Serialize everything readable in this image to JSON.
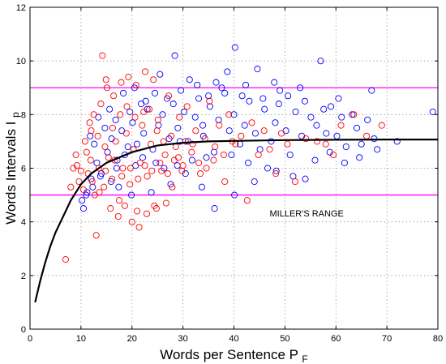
{
  "chart_data": {
    "type": "scatter",
    "title": "",
    "xlabel": "Words per Sentence",
    "xlabel_sub": "F",
    "xlabel_var": "P",
    "ylabel": "Words Intervals",
    "ylabel_var": "I",
    "ylabel_sub": "p",
    "xlim": [
      0,
      80
    ],
    "ylim": [
      0,
      12
    ],
    "xticks": [
      0,
      10,
      20,
      30,
      40,
      50,
      60,
      70,
      80
    ],
    "yticks": [
      0,
      2,
      4,
      6,
      8,
      10,
      12
    ],
    "grid": true,
    "annotation": "MILLER'S RANGE",
    "annotation_position": {
      "x": 47,
      "y": 4.2
    },
    "hlines": [
      {
        "y": 9,
        "color": "#ff00ff"
      },
      {
        "y": 5,
        "color": "#ff00ff"
      }
    ],
    "series": [
      {
        "marker": "circle-open",
        "color": "#0000ff",
        "points": [
          [
            10.5,
            4.5
          ],
          [
            11.2,
            5.1
          ],
          [
            12.0,
            5.6
          ],
          [
            13.1,
            6.2
          ],
          [
            14.0,
            5.8
          ],
          [
            15.2,
            6.6
          ],
          [
            16.0,
            7.1
          ],
          [
            17.1,
            6.3
          ],
          [
            18.0,
            7.4
          ],
          [
            19.2,
            6.8
          ],
          [
            20.1,
            7.7
          ],
          [
            21.0,
            6.9
          ],
          [
            22.3,
            7.3
          ],
          [
            23.0,
            8.2
          ],
          [
            24.1,
            6.7
          ],
          [
            25.2,
            7.6
          ],
          [
            26.0,
            8.0
          ],
          [
            27.3,
            7.1
          ],
          [
            28.1,
            8.4
          ],
          [
            29.0,
            7.5
          ],
          [
            30.2,
            8.1
          ],
          [
            31.0,
            7.0
          ],
          [
            32.4,
            7.9
          ],
          [
            33.1,
            8.6
          ],
          [
            34.0,
            7.2
          ],
          [
            35.3,
            8.3
          ],
          [
            36.1,
            6.6
          ],
          [
            37.0,
            7.8
          ],
          [
            38.2,
            8.8
          ],
          [
            39.1,
            7.4
          ],
          [
            40.0,
            8.0
          ],
          [
            41.2,
            6.9
          ],
          [
            42.1,
            7.6
          ],
          [
            43.0,
            8.5
          ],
          [
            44.2,
            7.3
          ],
          [
            45.1,
            6.7
          ],
          [
            46.0,
            8.2
          ],
          [
            47.3,
            7.0
          ],
          [
            48.1,
            7.7
          ],
          [
            49.0,
            8.9
          ],
          [
            50.2,
            7.4
          ],
          [
            51.0,
            6.5
          ],
          [
            52.1,
            8.1
          ],
          [
            53.3,
            7.2
          ],
          [
            54.0,
            5.6
          ],
          [
            55.1,
            7.9
          ],
          [
            56.2,
            7.6
          ],
          [
            57.0,
            10.0
          ],
          [
            58.1,
            7.3
          ],
          [
            59.0,
            8.3
          ],
          [
            60.2,
            7.2
          ],
          [
            61.1,
            7.9
          ],
          [
            62.0,
            6.8
          ],
          [
            63.2,
            8.0
          ],
          [
            64.1,
            7.5
          ],
          [
            65.0,
            6.9
          ],
          [
            66.2,
            7.8
          ],
          [
            67.0,
            8.9
          ],
          [
            68.1,
            6.7
          ],
          [
            72.0,
            7.0
          ],
          [
            79.0,
            8.1
          ],
          [
            40.2,
            10.5
          ],
          [
            28.4,
            10.2
          ],
          [
            36.5,
            9.2
          ],
          [
            44.6,
            9.7
          ],
          [
            47.9,
            9.2
          ],
          [
            50.6,
            8.7
          ],
          [
            31.3,
            9.3
          ],
          [
            38.7,
            9.6
          ],
          [
            25.5,
            9.5
          ],
          [
            20.5,
            9.0
          ],
          [
            18.3,
            8.8
          ],
          [
            22.7,
            8.5
          ],
          [
            15.6,
            8.2
          ],
          [
            13.4,
            7.9
          ],
          [
            11.8,
            7.2
          ],
          [
            12.6,
            6.9
          ],
          [
            14.7,
            7.5
          ],
          [
            16.8,
            7.8
          ],
          [
            19.6,
            8.1
          ],
          [
            21.8,
            8.4
          ],
          [
            24.5,
            8.8
          ],
          [
            26.9,
            8.6
          ],
          [
            29.6,
            8.9
          ],
          [
            32.8,
            9.1
          ],
          [
            35.0,
            8.7
          ],
          [
            37.6,
            9.0
          ],
          [
            42.3,
            9.1
          ],
          [
            45.7,
            8.6
          ],
          [
            48.8,
            8.4
          ],
          [
            53.9,
            8.5
          ],
          [
            57.6,
            8.2
          ],
          [
            36.2,
            4.5
          ],
          [
            40.1,
            5.0
          ],
          [
            33.7,
            5.3
          ],
          [
            44.0,
            5.5
          ],
          [
            48.3,
            5.9
          ],
          [
            51.6,
            5.7
          ],
          [
            27.6,
            5.4
          ],
          [
            30.5,
            5.8
          ],
          [
            23.8,
            5.1
          ],
          [
            19.9,
            5.0
          ],
          [
            17.4,
            5.3
          ],
          [
            15.9,
            5.5
          ],
          [
            13.8,
            5.7
          ],
          [
            12.3,
            5.3
          ],
          [
            11.0,
            5.0
          ],
          [
            10.2,
            4.8
          ],
          [
            42.8,
            6.2
          ],
          [
            46.6,
            6.0
          ],
          [
            39.5,
            6.5
          ],
          [
            34.6,
            6.4
          ],
          [
            31.8,
            6.3
          ],
          [
            28.9,
            6.1
          ],
          [
            26.3,
            6.0
          ],
          [
            24.7,
            6.2
          ],
          [
            22.1,
            6.4
          ],
          [
            20.7,
            6.1
          ],
          [
            18.6,
            6.5
          ],
          [
            17.0,
            6.0
          ],
          [
            55.9,
            6.3
          ],
          [
            58.8,
            6.6
          ],
          [
            61.7,
            6.2
          ],
          [
            64.6,
            6.4
          ],
          [
            67.5,
            7.1
          ],
          [
            60.5,
            8.6
          ],
          [
            53.0,
            9.0
          ],
          [
            41.6,
            8.7
          ],
          [
            33.9,
            7.6
          ],
          [
            29.4,
            7.0
          ]
        ]
      },
      {
        "marker": "circle-open",
        "color": "#ff0000",
        "points": [
          [
            7.0,
            2.6
          ],
          [
            8.0,
            5.3
          ],
          [
            9.2,
            6.1
          ],
          [
            10.0,
            5.9
          ],
          [
            11.1,
            6.6
          ],
          [
            12.0,
            7.4
          ],
          [
            13.0,
            3.5
          ],
          [
            13.6,
            5.1
          ],
          [
            14.2,
            10.2
          ],
          [
            14.9,
            9.3
          ],
          [
            15.4,
            6.4
          ],
          [
            16.1,
            5.6
          ],
          [
            16.8,
            7.0
          ],
          [
            17.5,
            4.8
          ],
          [
            18.2,
            6.0
          ],
          [
            18.9,
            7.3
          ],
          [
            19.6,
            5.4
          ],
          [
            20.3,
            6.7
          ],
          [
            21.0,
            4.4
          ],
          [
            21.6,
            6.2
          ],
          [
            22.3,
            8.1
          ],
          [
            23.0,
            5.7
          ],
          [
            23.7,
            6.9
          ],
          [
            24.4,
            4.6
          ],
          [
            25.1,
            7.8
          ],
          [
            25.8,
            5.9
          ],
          [
            26.5,
            6.5
          ],
          [
            27.2,
            8.7
          ],
          [
            27.9,
            5.3
          ],
          [
            28.6,
            6.8
          ],
          [
            29.3,
            7.9
          ],
          [
            30.0,
            6.1
          ],
          [
            30.8,
            8.3
          ],
          [
            31.7,
            6.6
          ],
          [
            32.5,
            7.4
          ],
          [
            33.4,
            5.8
          ],
          [
            34.3,
            7.1
          ],
          [
            35.2,
            8.5
          ],
          [
            36.0,
            6.3
          ],
          [
            37.1,
            7.6
          ],
          [
            38.2,
            5.5
          ],
          [
            39.0,
            8.0
          ],
          [
            40.3,
            6.9
          ],
          [
            41.4,
            7.2
          ],
          [
            42.6,
            4.8
          ],
          [
            43.5,
            7.7
          ],
          [
            44.8,
            6.5
          ],
          [
            45.9,
            7.4
          ],
          [
            47.0,
            6.7
          ],
          [
            48.2,
            5.8
          ],
          [
            49.3,
            7.3
          ],
          [
            50.5,
            6.9
          ],
          [
            52.0,
            5.5
          ],
          [
            54.1,
            7.1
          ],
          [
            56.3,
            7.0
          ],
          [
            58.0,
            6.9
          ],
          [
            59.5,
            6.5
          ],
          [
            61.0,
            7.6
          ],
          [
            63.5,
            8.0
          ],
          [
            66.0,
            7.2
          ],
          [
            69.0,
            7.6
          ],
          [
            12.5,
            8.0
          ],
          [
            13.9,
            8.4
          ],
          [
            15.1,
            9.0
          ],
          [
            16.4,
            8.7
          ],
          [
            17.9,
            9.2
          ],
          [
            19.3,
            9.4
          ],
          [
            20.8,
            9.1
          ],
          [
            22.6,
            9.6
          ],
          [
            24.2,
            9.3
          ],
          [
            9.6,
            5.5
          ],
          [
            10.5,
            5.2
          ],
          [
            11.4,
            5.8
          ],
          [
            12.7,
            5.0
          ],
          [
            14.5,
            5.3
          ],
          [
            15.8,
            4.5
          ],
          [
            17.3,
            4.2
          ],
          [
            18.6,
            4.6
          ],
          [
            20.0,
            4.0
          ],
          [
            21.4,
            3.8
          ],
          [
            22.9,
            4.3
          ],
          [
            24.8,
            4.5
          ],
          [
            26.7,
            4.7
          ],
          [
            8.5,
            6.0
          ],
          [
            9.0,
            6.5
          ],
          [
            10.8,
            7.0
          ],
          [
            11.7,
            7.7
          ],
          [
            13.3,
            7.2
          ],
          [
            14.7,
            6.8
          ],
          [
            16.2,
            7.5
          ],
          [
            17.7,
            8.0
          ],
          [
            19.0,
            8.3
          ],
          [
            20.6,
            7.9
          ],
          [
            22.0,
            7.6
          ],
          [
            23.4,
            8.2
          ],
          [
            24.9,
            7.4
          ],
          [
            26.2,
            7.0
          ],
          [
            27.7,
            7.2
          ],
          [
            29.1,
            6.4
          ],
          [
            30.5,
            7.0
          ],
          [
            31.9,
            6.9
          ],
          [
            33.1,
            6.2
          ],
          [
            34.6,
            6.0
          ],
          [
            36.3,
            6.8
          ],
          [
            38.0,
            6.5
          ],
          [
            39.7,
            7.0
          ],
          [
            12.2,
            5.5
          ],
          [
            13.5,
            6.0
          ],
          [
            14.8,
            5.9
          ],
          [
            16.6,
            6.3
          ],
          [
            18.0,
            5.7
          ],
          [
            19.7,
            6.0
          ],
          [
            21.2,
            5.6
          ],
          [
            22.5,
            6.1
          ],
          [
            23.9,
            5.9
          ],
          [
            25.5,
            6.2
          ],
          [
            27.0,
            5.8
          ],
          [
            28.3,
            6.3
          ],
          [
            29.8,
            5.9
          ],
          [
            11.9,
            6.3
          ]
        ]
      },
      {
        "type": "line",
        "name": "fit",
        "color": "#000000",
        "x": [
          1,
          2,
          3,
          4,
          5,
          6,
          8,
          10,
          12,
          15,
          20,
          25,
          30,
          35,
          40,
          50,
          60,
          70,
          80
        ],
        "y": [
          1.0,
          1.8,
          2.5,
          3.1,
          3.6,
          4.0,
          4.8,
          5.4,
          5.8,
          6.2,
          6.6,
          6.85,
          6.95,
          7.0,
          7.02,
          7.05,
          7.06,
          7.07,
          7.07
        ]
      }
    ]
  }
}
